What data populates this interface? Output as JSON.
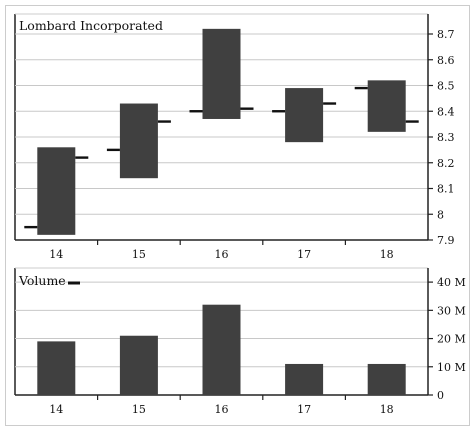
{
  "colors": {
    "bar": "#404040",
    "tick_mark": "#111111",
    "grid": "#c8c8c8",
    "frame": "#222222"
  },
  "chart_data": [
    {
      "type": "ohlc",
      "title": "Lombard Incorporated",
      "categories": [
        "14",
        "15",
        "16",
        "17",
        "18"
      ],
      "series": [
        {
          "open": 7.95,
          "high": 8.26,
          "low": 7.92,
          "close": 8.22
        },
        {
          "open": 8.25,
          "high": 8.43,
          "low": 8.14,
          "close": 8.36
        },
        {
          "open": 8.4,
          "high": 8.72,
          "low": 8.37,
          "close": 8.41
        },
        {
          "open": 8.4,
          "high": 8.49,
          "low": 8.28,
          "close": 8.43
        },
        {
          "open": 8.49,
          "high": 8.52,
          "low": 8.32,
          "close": 8.36
        }
      ],
      "ylim": [
        7.9,
        8.7
      ],
      "yticks": [
        "7.9",
        "8",
        "8.1",
        "8.2",
        "8.3",
        "8.4",
        "8.5",
        "8.6",
        "8.7"
      ],
      "grid": true
    },
    {
      "type": "bar",
      "title": "Volume",
      "categories": [
        "14",
        "15",
        "16",
        "17",
        "18"
      ],
      "values": [
        19000000,
        21000000,
        32000000,
        11000000,
        11000000
      ],
      "ylim": [
        0,
        45000000
      ],
      "yticks": [
        {
          "value": 0,
          "label": "0"
        },
        {
          "value": 10000000,
          "label": "10 M"
        },
        {
          "value": 20000000,
          "label": "20 M"
        },
        {
          "value": 30000000,
          "label": "30 M"
        },
        {
          "value": 40000000,
          "label": "40 M"
        }
      ],
      "grid": true
    }
  ]
}
